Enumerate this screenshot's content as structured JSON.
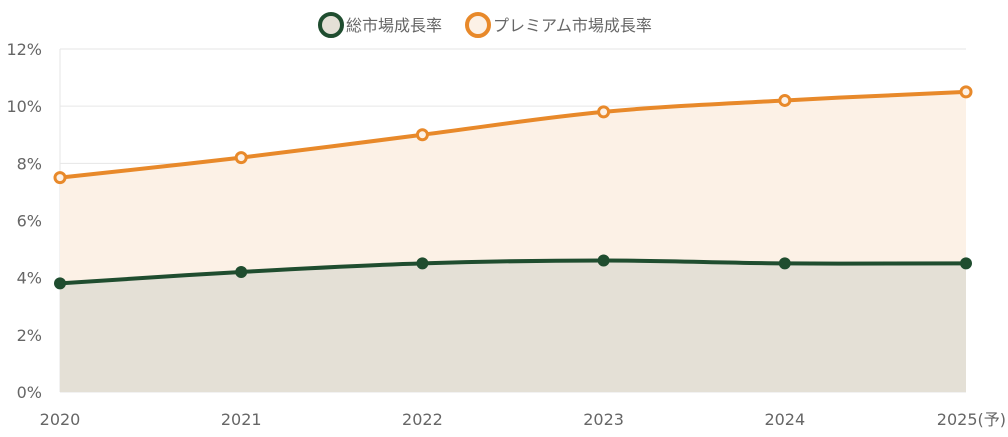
{
  "chart_data": {
    "type": "area",
    "title": "",
    "xlabel": "",
    "ylabel": "",
    "categories": [
      "2020",
      "2021",
      "2022",
      "2023",
      "2024",
      "2025(予)"
    ],
    "ylim": [
      0,
      12
    ],
    "yticks": [
      "0%",
      "2%",
      "4%",
      "6%",
      "8%",
      "10%",
      "12%"
    ],
    "ytick_values": [
      0,
      2,
      4,
      6,
      8,
      10,
      12
    ],
    "grid": true,
    "legend_position": "top-center",
    "series": [
      {
        "name": "総市場成長率",
        "values": [
          3.8,
          4.2,
          4.5,
          4.6,
          4.5,
          4.5
        ],
        "color": "#1f4d2f",
        "fill": "#e4e0d6"
      },
      {
        "name": "プレミアム市場成長率",
        "values": [
          7.5,
          8.2,
          9.0,
          9.8,
          10.2,
          10.5
        ],
        "color": "#e8892a",
        "fill": "#fcf1e6"
      }
    ]
  }
}
